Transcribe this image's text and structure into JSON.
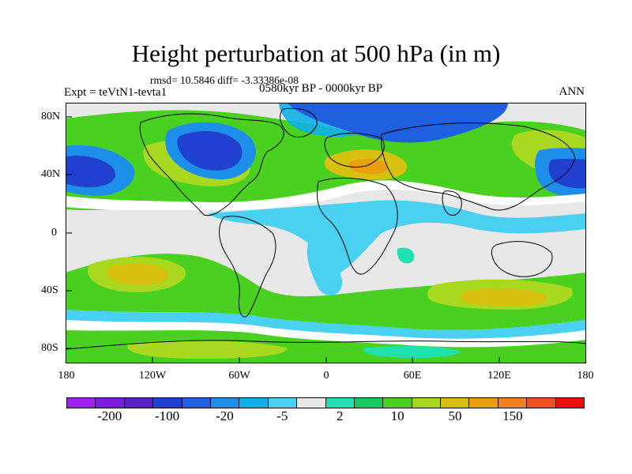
{
  "title": "Height perturbation at 500 hPa (in m)",
  "stats": "rmsd= 10.5846 diff= -3.33386e-08",
  "experiment": "Expt = teVtN1-tevta1",
  "period": "0580kyr BP - 0000kyr BP",
  "season": "ANN",
  "map": {
    "lat_labels": [
      "80N",
      "40N",
      "0",
      "40S",
      "80S"
    ],
    "lon_labels": [
      "180",
      "120W",
      "60W",
      "0",
      "60E",
      "120E",
      "180"
    ]
  },
  "colorbar": {
    "colors": [
      "#a020f0",
      "#7a1fe0",
      "#5a20c8",
      "#2040d0",
      "#1e60e0",
      "#1e8fe8",
      "#10b0e8",
      "#4ad0f0",
      "#e8e8e8",
      "#20e0b0",
      "#18c860",
      "#4ad020",
      "#a8d820",
      "#d8c010",
      "#e8a010",
      "#f08020",
      "#f05020",
      "#e81010"
    ],
    "labels": [
      "-200",
      "-100",
      "-20",
      "-5",
      "2",
      "10",
      "50",
      "150"
    ]
  }
}
